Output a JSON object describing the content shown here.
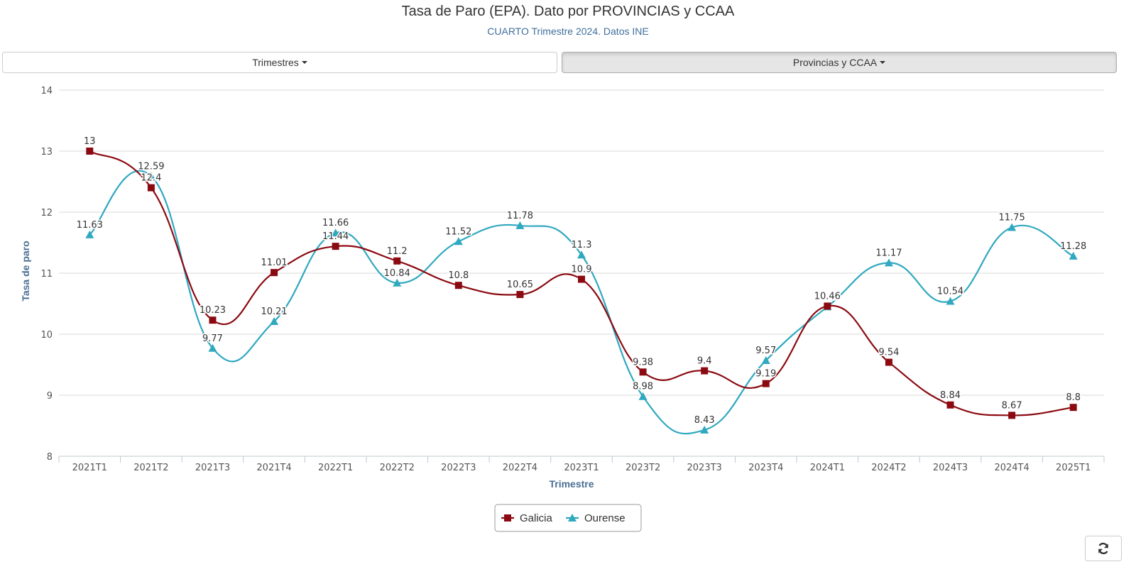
{
  "header": {
    "title": "Tasa de Paro (EPA). Dato por PROVINCIAS y CCAA",
    "subtitle": "CUARTO Trimestre 2024. Datos INE"
  },
  "controls": {
    "trimestres_label": "Trimestres",
    "provincias_label": "Provincias y CCAA",
    "refresh_icon": "refresh-icon"
  },
  "colors": {
    "galicia": "#8b0a12",
    "ourense": "#2fa8c0",
    "grid": "#d8d8d8",
    "axis_title": "#4a6f94"
  },
  "chart_data": {
    "type": "line",
    "title": "Tasa de Paro (EPA). Dato por PROVINCIAS y CCAA",
    "xlabel": "Trimestre",
    "ylabel": "Tasa de paro",
    "ylim": [
      8,
      14
    ],
    "yticks": [
      8,
      9,
      10,
      11,
      12,
      13,
      14
    ],
    "grid": true,
    "legend_position": "bottom-center",
    "categories": [
      "2021T1",
      "2021T2",
      "2021T3",
      "2021T4",
      "2022T1",
      "2022T2",
      "2022T3",
      "2022T4",
      "2023T1",
      "2023T2",
      "2023T3",
      "2023T4",
      "2024T1",
      "2024T2",
      "2024T3",
      "2024T4",
      "2025T1"
    ],
    "series": [
      {
        "name": "Galicia",
        "marker": "square",
        "values": [
          13,
          12.4,
          10.23,
          11.01,
          11.44,
          11.2,
          10.8,
          10.65,
          10.9,
          9.38,
          9.4,
          9.19,
          10.46,
          9.54,
          8.84,
          8.67,
          8.8
        ]
      },
      {
        "name": "Ourense",
        "marker": "triangle",
        "values": [
          11.63,
          12.59,
          9.77,
          10.21,
          11.66,
          10.84,
          11.52,
          11.78,
          11.3,
          8.98,
          8.43,
          9.57,
          10.45,
          11.17,
          10.54,
          11.75,
          11.28
        ]
      }
    ]
  }
}
